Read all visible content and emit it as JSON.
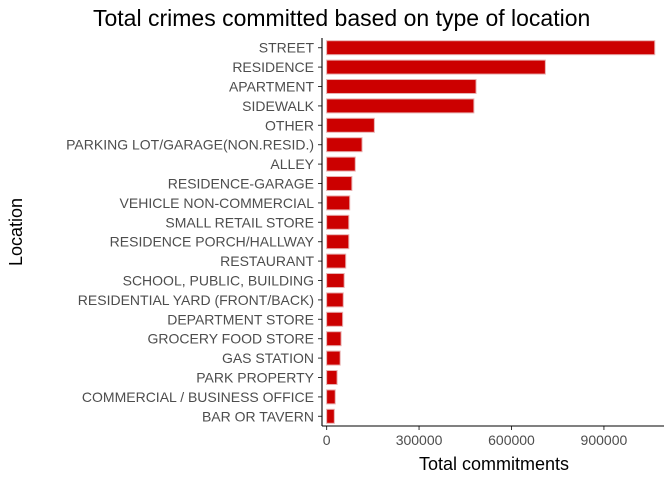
{
  "chart_data": {
    "type": "bar",
    "orientation": "horizontal",
    "title": "Total crimes committed based on type of location",
    "xlabel": "Total commitments",
    "ylabel": "Location",
    "categories": [
      "STREET",
      "RESIDENCE",
      "APARTMENT",
      "SIDEWALK",
      "OTHER",
      "PARKING LOT/GARAGE(NON.RESID.)",
      "ALLEY",
      "RESIDENCE-GARAGE",
      "VEHICLE NON-COMMERCIAL",
      "SMALL RETAIL STORE",
      "RESIDENCE PORCH/HALLWAY",
      "RESTAURANT",
      "SCHOOL, PUBLIC, BUILDING",
      "RESIDENTIAL YARD (FRONT/BACK)",
      "DEPARTMENT STORE",
      "GROCERY FOOD STORE",
      "GAS STATION",
      "PARK PROPERTY",
      "COMMERCIAL / BUSINESS OFFICE",
      "BAR OR TAVERN"
    ],
    "values": [
      1065000,
      710000,
      485000,
      478000,
      155000,
      115000,
      93000,
      82000,
      75000,
      72000,
      72000,
      62000,
      57000,
      54000,
      52000,
      47000,
      44000,
      34000,
      28000,
      25000
    ],
    "xlim": [
      -15000,
      1095000
    ],
    "xticks": [
      0,
      300000,
      600000,
      900000
    ],
    "xtick_labels": [
      "0",
      "300000",
      "600000",
      "900000"
    ],
    "bar_color": "#cc0000",
    "grid": false,
    "legend": "none"
  }
}
